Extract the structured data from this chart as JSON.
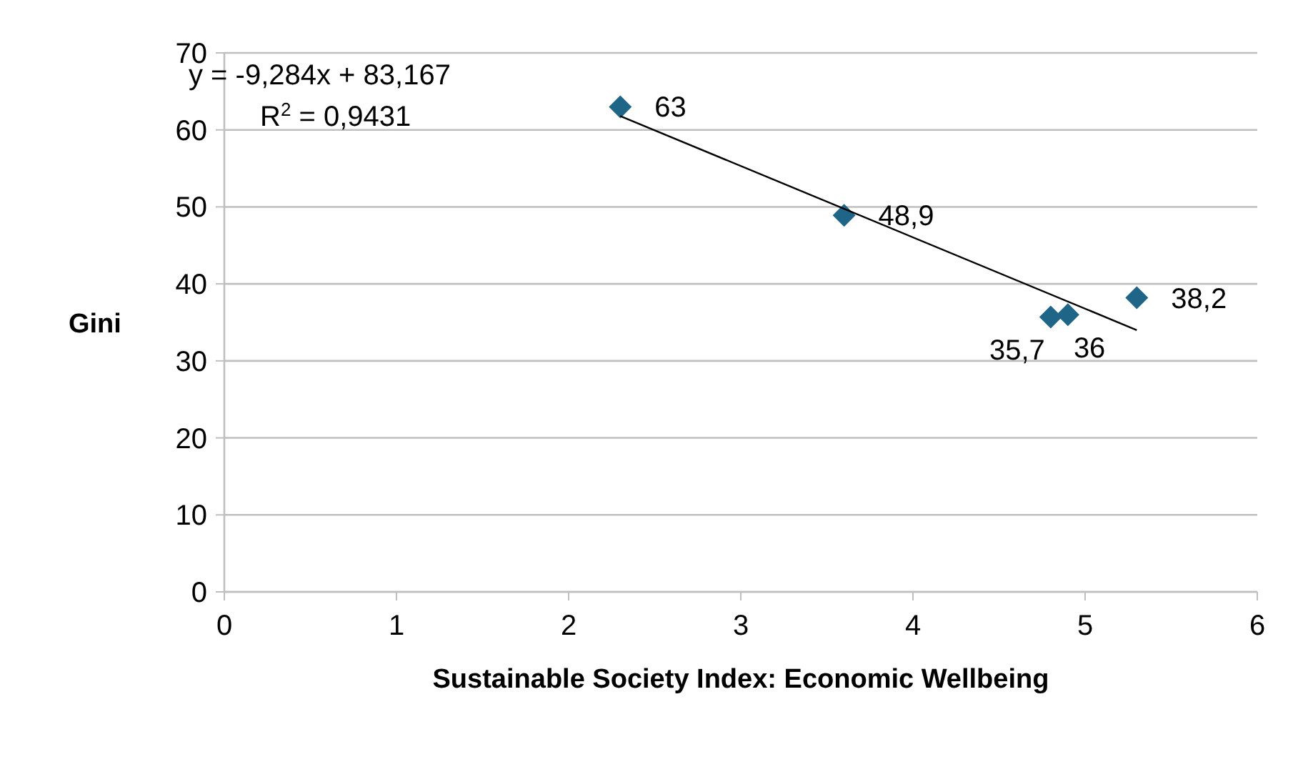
{
  "chart_data": {
    "type": "scatter",
    "xlabel": "Sustainable Society Index: Economic Wellbeing",
    "ylabel": "Gini",
    "xlim": [
      0,
      6
    ],
    "xticks": [
      0,
      1,
      2,
      3,
      4,
      5,
      6
    ],
    "ylim": [
      0,
      70
    ],
    "yticks": [
      0,
      10,
      20,
      30,
      40,
      50,
      60,
      70
    ],
    "grid": "y",
    "series": [
      {
        "color": "#1f6587",
        "marker": "diamond",
        "x": [
          2.3,
          3.6,
          4.8,
          4.9,
          5.3
        ],
        "values": [
          63,
          48.9,
          35.7,
          36,
          38.2
        ],
        "value_labels": [
          "63",
          "48,9",
          "35,7",
          "36",
          "38,2"
        ]
      },
      {
        "type": "line",
        "color": "#000000",
        "marker": "none",
        "line_style": "solid",
        "x": [
          2.3,
          5.3
        ],
        "values": [
          61.8,
          34
        ]
      }
    ],
    "annotations": [
      "y = -9,284x + 83,167",
      "R$^{2}$ = 0,9431"
    ]
  }
}
